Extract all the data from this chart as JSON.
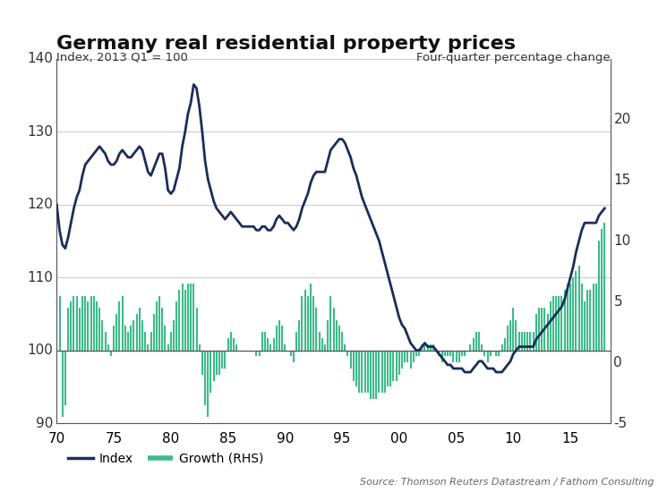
{
  "title": "Germany real residential property prices",
  "ylabel_left": "Index, 2013 Q1 = 100",
  "ylabel_right": "Four-quarter percentage change",
  "source": "Source: Thomson Reuters Datastream / Fathom Consulting",
  "legend_index": "Index",
  "legend_growth": "Growth (RHS)",
  "background_color": "#ffffff",
  "line_color": "#1a2e5a",
  "bar_color": "#3dbb8a",
  "grid_color": "#cccccc",
  "ylim_left": [
    90,
    140
  ],
  "ylim_right": [
    -5,
    25
  ],
  "xtick_positions": [
    70,
    75,
    80,
    85,
    90,
    95,
    100,
    105,
    110,
    115
  ],
  "xtick_labels": [
    "70",
    "75",
    "80",
    "85",
    "90",
    "95",
    "00",
    "05",
    "10",
    "15"
  ],
  "yticks_left": [
    90,
    100,
    110,
    120,
    130,
    140
  ],
  "yticks_right": [
    -5,
    0,
    5,
    10,
    15,
    20
  ],
  "index_x": [
    70.0,
    70.25,
    70.5,
    70.75,
    71.0,
    71.25,
    71.5,
    71.75,
    72.0,
    72.25,
    72.5,
    72.75,
    73.0,
    73.25,
    73.5,
    73.75,
    74.0,
    74.25,
    74.5,
    74.75,
    75.0,
    75.25,
    75.5,
    75.75,
    76.0,
    76.25,
    76.5,
    76.75,
    77.0,
    77.25,
    77.5,
    77.75,
    78.0,
    78.25,
    78.5,
    78.75,
    79.0,
    79.25,
    79.5,
    79.75,
    80.0,
    80.25,
    80.5,
    80.75,
    81.0,
    81.25,
    81.5,
    81.75,
    82.0,
    82.25,
    82.5,
    82.75,
    83.0,
    83.25,
    83.5,
    83.75,
    84.0,
    84.25,
    84.5,
    84.75,
    85.0,
    85.25,
    85.5,
    85.75,
    86.0,
    86.25,
    86.5,
    86.75,
    87.0,
    87.25,
    87.5,
    87.75,
    88.0,
    88.25,
    88.5,
    88.75,
    89.0,
    89.25,
    89.5,
    89.75,
    90.0,
    90.25,
    90.5,
    90.75,
    91.0,
    91.25,
    91.5,
    91.75,
    92.0,
    92.25,
    92.5,
    92.75,
    93.0,
    93.25,
    93.5,
    93.75,
    94.0,
    94.25,
    94.5,
    94.75,
    95.0,
    95.25,
    95.5,
    95.75,
    96.0,
    96.25,
    96.5,
    96.75,
    97.0,
    97.25,
    97.5,
    97.75,
    98.0,
    98.25,
    98.5,
    98.75,
    99.0,
    99.25,
    99.5,
    99.75,
    100.0,
    100.25,
    100.5,
    100.75,
    101.0,
    101.25,
    101.5,
    101.75,
    102.0,
    102.25,
    102.5,
    102.75,
    103.0,
    103.25,
    103.5,
    103.75,
    104.0,
    104.25,
    104.5,
    104.75,
    105.0,
    105.25,
    105.5,
    105.75,
    106.0,
    106.25,
    106.5,
    106.75,
    107.0,
    107.25,
    107.5,
    107.75,
    108.0,
    108.25,
    108.5,
    108.75,
    109.0,
    109.25,
    109.5,
    109.75,
    110.0,
    110.25,
    110.5,
    110.75,
    111.0,
    111.25,
    111.5,
    111.75,
    112.0,
    112.25,
    112.5,
    112.75,
    113.0,
    113.25,
    113.5,
    113.75,
    114.0,
    114.25,
    114.5,
    114.75,
    115.0,
    115.25,
    115.5,
    115.75,
    116.0,
    116.25,
    116.5,
    116.75,
    117.0,
    117.25,
    117.5,
    117.75,
    118.0
  ],
  "index_y": [
    120.0,
    116.5,
    114.5,
    114.0,
    115.5,
    117.5,
    119.5,
    121.0,
    122.0,
    124.0,
    125.5,
    126.0,
    126.5,
    127.0,
    127.5,
    128.0,
    127.5,
    127.0,
    126.0,
    125.5,
    125.5,
    126.0,
    127.0,
    127.5,
    127.0,
    126.5,
    126.5,
    127.0,
    127.5,
    128.0,
    127.5,
    126.0,
    124.5,
    124.0,
    125.0,
    126.0,
    127.0,
    127.0,
    125.0,
    122.0,
    121.5,
    122.0,
    123.5,
    125.0,
    128.0,
    130.0,
    132.5,
    134.0,
    136.5,
    136.0,
    133.5,
    130.0,
    126.0,
    123.5,
    122.0,
    120.5,
    119.5,
    119.0,
    118.5,
    118.0,
    118.5,
    119.0,
    118.5,
    118.0,
    117.5,
    117.0,
    117.0,
    117.0,
    117.0,
    117.0,
    116.5,
    116.5,
    117.0,
    117.0,
    116.5,
    116.5,
    117.0,
    118.0,
    118.5,
    118.0,
    117.5,
    117.5,
    117.0,
    116.5,
    117.0,
    118.0,
    119.5,
    120.5,
    121.5,
    123.0,
    124.0,
    124.5,
    124.5,
    124.5,
    124.5,
    126.0,
    127.5,
    128.0,
    128.5,
    129.0,
    129.0,
    128.5,
    127.5,
    126.5,
    125.0,
    124.0,
    122.5,
    121.0,
    120.0,
    119.0,
    118.0,
    117.0,
    116.0,
    115.0,
    113.5,
    112.0,
    110.5,
    109.0,
    107.5,
    106.0,
    104.5,
    103.5,
    103.0,
    102.0,
    101.0,
    100.5,
    100.0,
    100.0,
    100.5,
    101.0,
    100.5,
    100.5,
    100.5,
    100.0,
    99.5,
    99.0,
    98.5,
    98.0,
    98.0,
    97.5,
    97.5,
    97.5,
    97.5,
    97.0,
    97.0,
    97.0,
    97.5,
    98.0,
    98.5,
    98.5,
    98.0,
    97.5,
    97.5,
    97.5,
    97.0,
    97.0,
    97.0,
    97.5,
    98.0,
    98.5,
    99.5,
    100.0,
    100.5,
    100.5,
    100.5,
    100.5,
    100.5,
    100.5,
    101.5,
    102.0,
    102.5,
    103.0,
    103.5,
    104.0,
    104.5,
    105.0,
    105.5,
    106.0,
    107.0,
    108.5,
    110.0,
    111.5,
    113.5,
    115.0,
    116.5,
    117.5,
    117.5,
    117.5,
    117.5,
    117.5,
    118.5,
    119.0,
    119.5
  ],
  "growth_x": [
    70.0,
    70.25,
    70.5,
    70.75,
    71.0,
    71.25,
    71.5,
    71.75,
    72.0,
    72.25,
    72.5,
    72.75,
    73.0,
    73.25,
    73.5,
    73.75,
    74.0,
    74.25,
    74.5,
    74.75,
    75.0,
    75.25,
    75.5,
    75.75,
    76.0,
    76.25,
    76.5,
    76.75,
    77.0,
    77.25,
    77.5,
    77.75,
    78.0,
    78.25,
    78.5,
    78.75,
    79.0,
    79.25,
    79.5,
    79.75,
    80.0,
    80.25,
    80.5,
    80.75,
    81.0,
    81.25,
    81.5,
    81.75,
    82.0,
    82.25,
    82.5,
    82.75,
    83.0,
    83.25,
    83.5,
    83.75,
    84.0,
    84.25,
    84.5,
    84.75,
    85.0,
    85.25,
    85.5,
    85.75,
    86.0,
    86.25,
    86.5,
    86.75,
    87.0,
    87.25,
    87.5,
    87.75,
    88.0,
    88.25,
    88.5,
    88.75,
    89.0,
    89.25,
    89.5,
    89.75,
    90.0,
    90.25,
    90.5,
    90.75,
    91.0,
    91.25,
    91.5,
    91.75,
    92.0,
    92.25,
    92.5,
    92.75,
    93.0,
    93.25,
    93.5,
    93.75,
    94.0,
    94.25,
    94.5,
    94.75,
    95.0,
    95.25,
    95.5,
    95.75,
    96.0,
    96.25,
    96.5,
    96.75,
    97.0,
    97.25,
    97.5,
    97.75,
    98.0,
    98.25,
    98.5,
    98.75,
    99.0,
    99.25,
    99.5,
    99.75,
    100.0,
    100.25,
    100.5,
    100.75,
    101.0,
    101.25,
    101.5,
    101.75,
    102.0,
    102.25,
    102.5,
    102.75,
    103.0,
    103.25,
    103.5,
    103.75,
    104.0,
    104.25,
    104.5,
    104.75,
    105.0,
    105.25,
    105.5,
    105.75,
    106.0,
    106.25,
    106.5,
    106.75,
    107.0,
    107.25,
    107.5,
    107.75,
    108.0,
    108.25,
    108.5,
    108.75,
    109.0,
    109.25,
    109.5,
    109.75,
    110.0,
    110.25,
    110.5,
    110.75,
    111.0,
    111.25,
    111.5,
    111.75,
    112.0,
    112.25,
    112.5,
    112.75,
    113.0,
    113.25,
    113.5,
    113.75,
    114.0,
    114.25,
    114.5,
    114.75,
    115.0,
    115.25,
    115.5,
    115.75,
    116.0,
    116.25,
    116.5,
    116.75,
    117.0,
    117.25,
    117.5,
    117.75,
    118.0
  ],
  "growth_y": [
    5.0,
    4.5,
    -5.5,
    -4.5,
    3.5,
    4.0,
    4.5,
    4.5,
    3.5,
    4.5,
    4.5,
    4.0,
    4.5,
    4.5,
    4.0,
    3.5,
    2.5,
    1.5,
    0.5,
    -0.5,
    2.0,
    3.0,
    4.0,
    4.5,
    2.0,
    1.5,
    2.0,
    2.5,
    3.0,
    3.5,
    2.5,
    1.5,
    0.5,
    1.5,
    3.0,
    4.0,
    4.5,
    3.5,
    2.0,
    0.5,
    1.5,
    2.5,
    4.0,
    5.0,
    5.5,
    5.0,
    5.5,
    5.5,
    5.5,
    3.5,
    0.5,
    -2.0,
    -4.5,
    -5.5,
    -3.5,
    -2.5,
    -2.0,
    -2.0,
    -1.5,
    -1.5,
    1.0,
    1.5,
    1.0,
    0.5,
    0.0,
    0.0,
    0.0,
    0.0,
    0.0,
    0.0,
    -0.5,
    -0.5,
    1.5,
    1.5,
    1.0,
    0.5,
    1.0,
    2.0,
    2.5,
    2.0,
    0.5,
    0.0,
    -0.5,
    -1.0,
    1.5,
    2.5,
    4.5,
    5.0,
    4.5,
    5.5,
    4.5,
    3.5,
    1.5,
    1.0,
    0.5,
    2.5,
    4.5,
    3.5,
    2.5,
    2.0,
    1.5,
    0.5,
    -0.5,
    -1.5,
    -2.5,
    -3.0,
    -3.5,
    -3.5,
    -3.5,
    -3.5,
    -4.0,
    -4.0,
    -4.0,
    -3.5,
    -3.5,
    -3.5,
    -3.0,
    -3.0,
    -2.5,
    -2.5,
    -2.0,
    -1.5,
    -1.0,
    -1.0,
    -1.5,
    -1.0,
    -0.5,
    -0.5,
    0.5,
    0.5,
    0.5,
    0.5,
    0.5,
    0.0,
    -0.5,
    -1.0,
    -0.5,
    -0.5,
    -0.5,
    -1.0,
    -1.0,
    -1.0,
    -0.5,
    -0.5,
    0.0,
    0.5,
    1.0,
    1.5,
    1.5,
    0.5,
    -0.5,
    -1.0,
    -0.5,
    0.0,
    -0.5,
    -0.5,
    0.5,
    1.0,
    2.0,
    2.5,
    3.5,
    2.5,
    1.5,
    1.5,
    1.5,
    1.5,
    1.5,
    1.5,
    3.0,
    3.5,
    3.5,
    3.5,
    3.0,
    4.0,
    4.5,
    4.5,
    4.5,
    4.5,
    5.0,
    5.5,
    5.5,
    6.0,
    6.5,
    7.0,
    5.5,
    4.0,
    5.0,
    5.0,
    5.5,
    5.5,
    9.0,
    10.0,
    10.5
  ]
}
